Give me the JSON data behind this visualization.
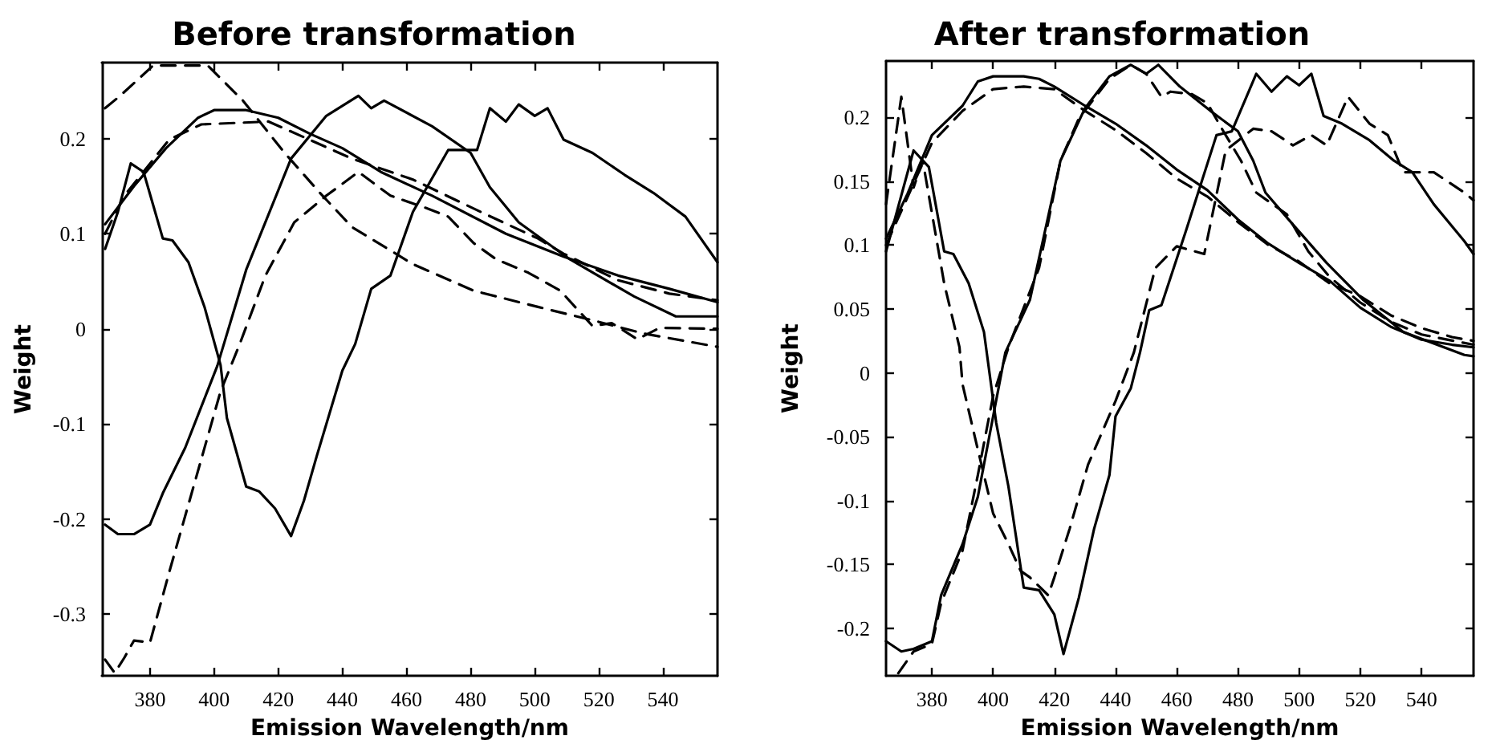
{
  "chart_data": [
    {
      "type": "line",
      "title": "Before transformation",
      "xlabel": "Emission Wavelength/nm",
      "ylabel": "Weight",
      "xlim": [
        365,
        557
      ],
      "xticks": [
        380,
        400,
        420,
        440,
        460,
        480,
        500,
        520,
        540
      ],
      "ylim": [
        -0.365,
        0.28
      ],
      "yticks": [
        -0.3,
        -0.2,
        -0.1,
        0,
        0.1,
        0.2
      ],
      "grid": false,
      "marker": "none",
      "series": [
        {
          "color": "#000000",
          "line_style": "solid",
          "x": [
            366,
            375,
            385,
            395,
            400,
            410,
            420,
            430,
            440,
            452,
            468,
            491,
            509,
            526,
            542,
            557
          ],
          "values": [
            0.11,
            0.15,
            0.19,
            0.222,
            0.23,
            0.23,
            0.222,
            0.205,
            0.19,
            0.165,
            0.14,
            0.1,
            0.076,
            0.056,
            0.042,
            0.028
          ]
        },
        {
          "color": "#000000",
          "line_style": "solid",
          "x": [
            366,
            370,
            375,
            380,
            384,
            391,
            401,
            410,
            424,
            435,
            445,
            449,
            453,
            468,
            480,
            486,
            495,
            511,
            531,
            544,
            557
          ],
          "values": [
            -0.206,
            -0.216,
            -0.216,
            -0.206,
            -0.173,
            -0.125,
            -0.039,
            0.062,
            0.179,
            0.224,
            0.245,
            0.232,
            0.24,
            0.213,
            0.185,
            0.149,
            0.112,
            0.073,
            0.034,
            0.013,
            0.013
          ]
        },
        {
          "color": "#000000",
          "line_style": "solid",
          "x": [
            366,
            370,
            374,
            378,
            384,
            387,
            392,
            397,
            402,
            404,
            410,
            414,
            419,
            424,
            428,
            432,
            440,
            444,
            449,
            455,
            462,
            473,
            482,
            486,
            491,
            495,
            500,
            504,
            509,
            518,
            528,
            537,
            547,
            557
          ],
          "values": [
            0.084,
            0.123,
            0.174,
            0.165,
            0.095,
            0.093,
            0.07,
            0.023,
            -0.038,
            -0.094,
            -0.166,
            -0.171,
            -0.189,
            -0.218,
            -0.181,
            -0.134,
            -0.044,
            -0.016,
            0.042,
            0.056,
            0.123,
            0.188,
            0.188,
            0.232,
            0.218,
            0.236,
            0.224,
            0.232,
            0.199,
            0.185,
            0.162,
            0.143,
            0.118,
            0.07
          ]
        },
        {
          "color": "#000000",
          "line_style": "dashed",
          "x": [
            366,
            371,
            381,
            398,
            409,
            422,
            433,
            443,
            462,
            481,
            501,
            518,
            534,
            557
          ],
          "values": [
            0.232,
            0.246,
            0.277,
            0.277,
            0.24,
            0.185,
            0.143,
            0.107,
            0.068,
            0.04,
            0.023,
            0.009,
            -0.005,
            -0.019
          ]
        },
        {
          "color": "#000000",
          "line_style": "dashed",
          "x": [
            366,
            369,
            372,
            375,
            380,
            386,
            394,
            402,
            408,
            416,
            425,
            435,
            445,
            455,
            467,
            473,
            481,
            488,
            498,
            508,
            518,
            524,
            532,
            539,
            557
          ],
          "values": [
            -0.348,
            -0.362,
            -0.346,
            -0.328,
            -0.33,
            -0.256,
            -0.161,
            -0.066,
            -0.016,
            0.056,
            0.112,
            0.14,
            0.165,
            0.14,
            0.126,
            0.118,
            0.09,
            0.073,
            0.059,
            0.04,
            0.003,
            0.006,
            -0.011,
            0.001,
            0
          ]
        },
        {
          "color": "#000000",
          "line_style": "dashed",
          "x": [
            366,
            372,
            386,
            396,
            417,
            429,
            443,
            462,
            485,
            501,
            509,
            526,
            542,
            557
          ],
          "values": [
            0.1,
            0.14,
            0.199,
            0.215,
            0.218,
            0.2,
            0.179,
            0.157,
            0.12,
            0.095,
            0.079,
            0.051,
            0.037,
            0.03
          ]
        }
      ]
    },
    {
      "type": "line",
      "title": "After transformation",
      "xlabel": "Emission Wavelength/nm",
      "ylabel": "Weight",
      "xlim": [
        365,
        557
      ],
      "xticks": [
        380,
        400,
        420,
        440,
        460,
        480,
        500,
        520,
        540
      ],
      "ylim": [
        -0.237,
        0.244
      ],
      "yticks": [
        -0.2,
        -0.15,
        -0.1,
        -0.05,
        0,
        0.05,
        0.1,
        0.15,
        0.2
      ],
      "grid": false,
      "marker": "none",
      "series": [
        {
          "color": "#000000",
          "line_style": "solid",
          "x": [
            365,
            372,
            380,
            390,
            395,
            400,
            410,
            415,
            420,
            430,
            440,
            450,
            460,
            470,
            480,
            490,
            500,
            510,
            520,
            530,
            540,
            550,
            557
          ],
          "values": [
            0.105,
            0.14,
            0.186,
            0.209,
            0.228,
            0.232,
            0.232,
            0.23,
            0.224,
            0.209,
            0.195,
            0.178,
            0.159,
            0.143,
            0.12,
            0.101,
            0.086,
            0.072,
            0.051,
            0.036,
            0.026,
            0.022,
            0.02
          ]
        },
        {
          "color": "#000000",
          "line_style": "dashed",
          "x": [
            365,
            380,
            390,
            400,
            410,
            420,
            430,
            440,
            450,
            460,
            470,
            480,
            490,
            500,
            510,
            520,
            530,
            540,
            550,
            557
          ],
          "values": [
            0.1,
            0.18,
            0.205,
            0.222,
            0.224,
            0.222,
            0.205,
            0.19,
            0.172,
            0.152,
            0.138,
            0.118,
            0.1,
            0.087,
            0.07,
            0.06,
            0.045,
            0.035,
            0.028,
            0.025
          ]
        },
        {
          "color": "#000000",
          "line_style": "solid",
          "x": [
            365,
            370,
            374,
            380,
            383,
            390,
            395,
            400,
            404,
            412,
            422,
            430,
            438,
            445,
            450,
            454,
            461,
            471,
            480,
            485,
            489,
            498,
            509,
            521,
            534,
            554,
            557
          ],
          "values": [
            -0.21,
            -0.218,
            -0.216,
            -0.21,
            -0.174,
            -0.134,
            -0.097,
            -0.034,
            0.016,
            0.057,
            0.166,
            0.207,
            0.232,
            0.241,
            0.234,
            0.241,
            0.224,
            0.205,
            0.189,
            0.166,
            0.141,
            0.116,
            0.086,
            0.057,
            0.032,
            0.014,
            0.013
          ]
        },
        {
          "color": "#000000",
          "line_style": "dashed",
          "x": [
            369,
            374,
            380,
            383,
            390,
            395,
            400,
            405,
            415,
            422,
            428,
            438,
            445,
            450,
            455,
            458,
            465,
            470,
            475,
            481,
            486,
            496,
            503,
            510,
            520,
            530,
            540,
            557
          ],
          "values": [
            -0.235,
            -0.218,
            -0.212,
            -0.18,
            -0.139,
            -0.08,
            -0.018,
            0.02,
            0.082,
            0.166,
            0.199,
            0.23,
            0.241,
            0.234,
            0.216,
            0.22,
            0.218,
            0.211,
            0.19,
            0.166,
            0.141,
            0.124,
            0.095,
            0.075,
            0.055,
            0.04,
            0.03,
            0.022
          ]
        },
        {
          "color": "#000000",
          "line_style": "solid",
          "x": [
            365,
            374,
            379,
            384,
            387,
            392,
            397,
            401,
            405,
            410,
            415,
            420,
            423,
            428,
            433,
            438,
            440,
            445,
            448,
            451,
            455,
            463,
            473,
            478,
            486,
            491,
            496,
            500,
            504,
            508,
            514,
            523,
            531,
            537,
            544,
            554,
            557
          ],
          "values": [
            0.095,
            0.174,
            0.161,
            0.095,
            0.093,
            0.07,
            0.032,
            -0.039,
            -0.089,
            -0.168,
            -0.17,
            -0.189,
            -0.22,
            -0.176,
            -0.122,
            -0.08,
            -0.034,
            -0.012,
            0.016,
            0.049,
            0.053,
            0.111,
            0.186,
            0.189,
            0.234,
            0.22,
            0.232,
            0.225,
            0.234,
            0.201,
            0.195,
            0.182,
            0.166,
            0.157,
            0.132,
            0.103,
            0.093
          ]
        },
        {
          "color": "#000000",
          "line_style": "dashed",
          "x": [
            365,
            370,
            374,
            377,
            384,
            389,
            390,
            395,
            400,
            405,
            409,
            412,
            418,
            420,
            425,
            431,
            440,
            446,
            453,
            460,
            469,
            476,
            485,
            491,
            498,
            504,
            509,
            516,
            523,
            529,
            534,
            544,
            554,
            557
          ],
          "values": [
            0.132,
            0.216,
            0.145,
            0.166,
            0.07,
            0.02,
            -0.009,
            -0.06,
            -0.11,
            -0.134,
            -0.155,
            -0.16,
            -0.174,
            -0.16,
            -0.122,
            -0.072,
            -0.022,
            0.016,
            0.082,
            0.099,
            0.093,
            0.174,
            0.191,
            0.189,
            0.178,
            0.186,
            0.178,
            0.216,
            0.195,
            0.186,
            0.157,
            0.157,
            0.141,
            0.135
          ]
        }
      ]
    }
  ]
}
